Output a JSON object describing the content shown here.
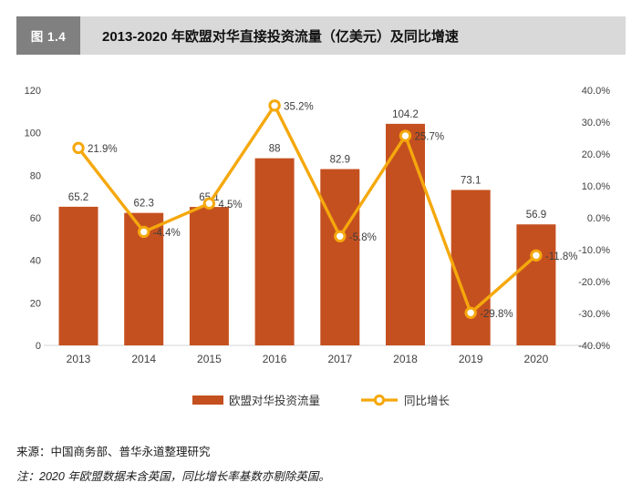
{
  "figure": {
    "tag": "图 1.4",
    "title": "2013-2020 年欧盟对华直接投资流量（亿美元）及同比增速"
  },
  "chart_data": {
    "type": "bar",
    "categories": [
      "2013",
      "2014",
      "2015",
      "2016",
      "2017",
      "2018",
      "2019",
      "2020"
    ],
    "series": [
      {
        "name": "欧盟对华投资流量",
        "type": "bar",
        "axis": "left",
        "values": [
          65.2,
          62.3,
          65.1,
          88,
          82.9,
          104.2,
          73.1,
          56.9
        ],
        "labels": [
          "65.2",
          "62.3",
          "65.1",
          "88",
          "82.9",
          "104.2",
          "73.1",
          "56.9"
        ],
        "color": "#C5501F"
      },
      {
        "name": "同比增长",
        "type": "line",
        "axis": "right",
        "values": [
          21.9,
          -4.4,
          4.5,
          35.2,
          -5.8,
          25.7,
          -29.8,
          -11.8
        ],
        "labels": [
          "21.9%",
          "-4.4%",
          "4.5%",
          "35.2%",
          "-5.8%",
          "25.7%",
          "-29.8%",
          "-11.8%"
        ],
        "color": "#F5A80C"
      }
    ],
    "left_axis": {
      "min": 0,
      "max": 120,
      "step": 20,
      "ticks": [
        "0",
        "20",
        "40",
        "60",
        "80",
        "100",
        "120"
      ]
    },
    "right_axis": {
      "min": -40,
      "max": 40,
      "step": 10,
      "ticks": [
        "40.0%",
        "30.0%",
        "20.0%",
        "10.0%",
        "0.0%",
        "-10.0%",
        "-20.0%",
        "-30.0%",
        "-40.0%"
      ]
    },
    "grid": false,
    "legend_position": "bottom",
    "title": "2013-2020 年欧盟对华直接投资流量（亿美元）及同比增速"
  },
  "footer": {
    "source": "来源：中国商务部、普华永道整理研究",
    "note": "注：2020 年欧盟数据未含英国，同比增长率基数亦剔除英国。"
  },
  "colors": {
    "bar": "#C5501F",
    "line": "#F5A80C",
    "header_tag_bg": "#808080",
    "header_bar_bg": "#D9D9D9",
    "axis_text": "#404040",
    "axis_line": "#D6D6D6"
  }
}
